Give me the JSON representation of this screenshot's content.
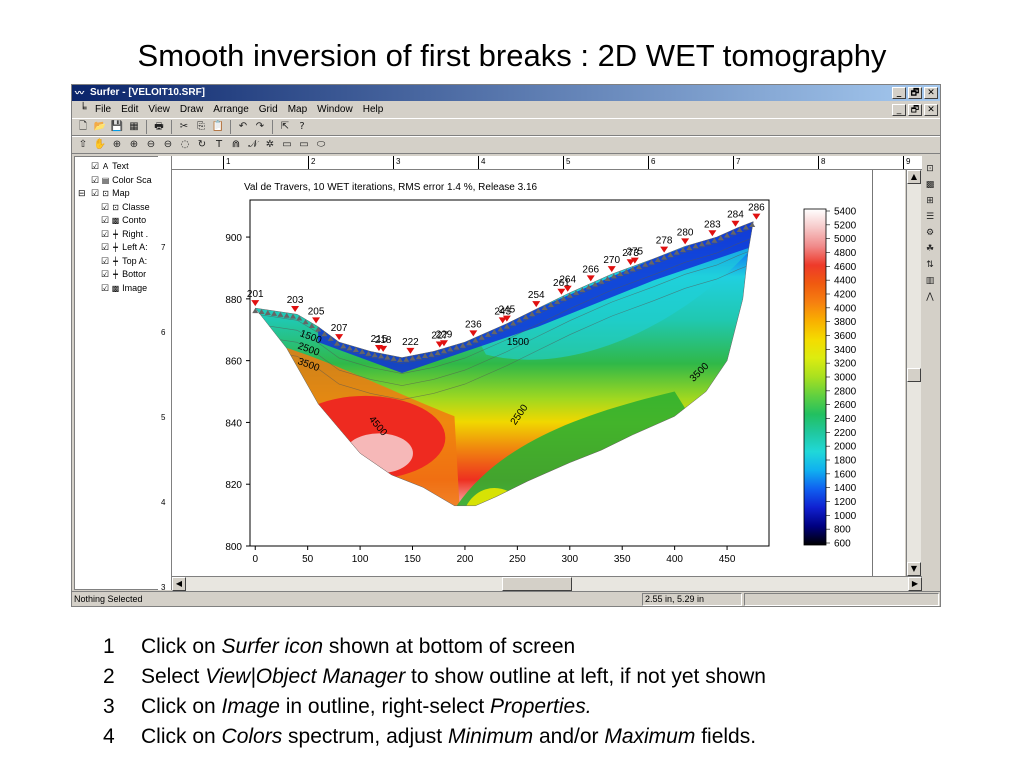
{
  "slide": {
    "title": "Smooth inversion of first breaks : 2D WET tomography"
  },
  "window": {
    "title": "Surfer - [VELOIT10.SRF]",
    "controls": [
      "_",
      "🗗",
      "✕"
    ],
    "mdi_controls": [
      "_",
      "🗗",
      "✕"
    ]
  },
  "menu": [
    "File",
    "Edit",
    "View",
    "Draw",
    "Arrange",
    "Grid",
    "Map",
    "Window",
    "Help"
  ],
  "toolbar1_icons": [
    "new-icon",
    "open-icon",
    "save-icon",
    "grid-icon",
    "print-icon",
    "cut-icon",
    "copy-icon",
    "paste-icon",
    "undo-icon",
    "redo-icon",
    "select-icon",
    "help-icon"
  ],
  "toolbar1_glyphs": [
    "🗋",
    "📂",
    "💾",
    "▦",
    "🖶",
    "✂",
    "⎘",
    "📋",
    "↶",
    "↷",
    "⇱",
    "?"
  ],
  "toolbar2_glyphs": [
    "⇧",
    "✋",
    "⊕",
    "⊕",
    "⊖",
    "⊖",
    "◌",
    "↻",
    "T",
    "⋒",
    "𝒩",
    "✲",
    "▭",
    "▭",
    "⬭"
  ],
  "right_tools": [
    "⊡",
    "▩",
    "⊞",
    "☰",
    "⚙",
    "☘",
    "⇅",
    "▥",
    "⋀"
  ],
  "outline": {
    "items": [
      {
        "label": "Text",
        "icon": "A",
        "check": "☑",
        "level": 1
      },
      {
        "label": "Color Sca",
        "icon": "▤",
        "check": "☑",
        "level": 1
      },
      {
        "label": "Map",
        "icon": "⊡",
        "check": "☑",
        "level": 1,
        "expander": "⊟"
      },
      {
        "label": "Classe",
        "icon": "⊡",
        "check": "☑",
        "level": 2
      },
      {
        "label": "Conto",
        "icon": "▩",
        "check": "☑",
        "level": 2
      },
      {
        "label": "Right .",
        "icon": "┿",
        "check": "☑",
        "level": 2
      },
      {
        "label": "Left A:",
        "icon": "┿",
        "check": "☑",
        "level": 2
      },
      {
        "label": "Top A:",
        "icon": "┿",
        "check": "☑",
        "level": 2
      },
      {
        "label": "Bottor",
        "icon": "┿",
        "check": "☑",
        "level": 2
      },
      {
        "label": "Image",
        "icon": "▩",
        "check": "☑",
        "level": 2
      }
    ]
  },
  "rulers": {
    "top": [
      "1",
      "2",
      "3",
      "4",
      "5",
      "6",
      "7",
      "8",
      "9"
    ],
    "left": [
      "7",
      "6",
      "5",
      "4",
      "3"
    ]
  },
  "status": {
    "left": "Nothing Selected",
    "coords": "2.55 in, 5.29 in"
  },
  "instructions": [
    {
      "num": "1",
      "parts": [
        {
          "t": "Click on "
        },
        {
          "t": "Surfer icon",
          "em": true
        },
        {
          "t": " shown at bottom of screen"
        }
      ]
    },
    {
      "num": "2",
      "parts": [
        {
          "t": "Select "
        },
        {
          "t": "View|Object Manager",
          "em": true
        },
        {
          "t": " to show outline at left, if not yet shown"
        }
      ]
    },
    {
      "num": "3",
      "parts": [
        {
          "t": "Click on "
        },
        {
          "t": "Image",
          "em": true
        },
        {
          "t": " in outline, right-select "
        },
        {
          "t": "Properties.",
          "em": true
        }
      ]
    },
    {
      "num": "4",
      "parts": [
        {
          "t": "Click on "
        },
        {
          "t": "Colors",
          "em": true
        },
        {
          "t": " spectrum, adjust "
        },
        {
          "t": "Minimum",
          "em": true
        },
        {
          "t": " and/or "
        },
        {
          "t": "Maximum",
          "em": true
        },
        {
          "t": " fields."
        }
      ]
    }
  ],
  "plot": {
    "title": "Val de Travers,   10 WET iterations,   RMS error 1.4 %,   Release 3.16",
    "xticks": [
      0,
      50,
      100,
      150,
      200,
      250,
      300,
      350,
      400,
      450
    ],
    "yticks": [
      800,
      820,
      840,
      860,
      880,
      900
    ],
    "xlim": [
      -5,
      490
    ],
    "ylim": [
      800,
      912
    ],
    "surface": [
      [
        0,
        877
      ],
      [
        40,
        875
      ],
      [
        60,
        871
      ],
      [
        80,
        866
      ],
      [
        110,
        863
      ],
      [
        140,
        861
      ],
      [
        170,
        863
      ],
      [
        200,
        866
      ],
      [
        240,
        872
      ],
      [
        270,
        877
      ],
      [
        300,
        882
      ],
      [
        340,
        888
      ],
      [
        380,
        893
      ],
      [
        410,
        897
      ],
      [
        440,
        900
      ],
      [
        460,
        903
      ],
      [
        475,
        905
      ]
    ],
    "bottom": [
      [
        0,
        877
      ],
      [
        30,
        864
      ],
      [
        60,
        846
      ],
      [
        80,
        838
      ],
      [
        100,
        830
      ],
      [
        130,
        823
      ],
      [
        160,
        819
      ],
      [
        190,
        813
      ],
      [
        210,
        813
      ],
      [
        230,
        816
      ],
      [
        260,
        821
      ],
      [
        300,
        827
      ],
      [
        330,
        831
      ],
      [
        360,
        836
      ],
      [
        400,
        842
      ],
      [
        430,
        850
      ],
      [
        450,
        860
      ],
      [
        465,
        880
      ],
      [
        470,
        895
      ],
      [
        475,
        905
      ]
    ],
    "stations": [
      {
        "x": 0,
        "label": "201"
      },
      {
        "x": 38,
        "label": "203"
      },
      {
        "x": 58,
        "label": "205"
      },
      {
        "x": 80,
        "label": "207"
      },
      {
        "x": 118,
        "label": "215"
      },
      {
        "x": 122,
        "label": "218"
      },
      {
        "x": 148,
        "label": "222"
      },
      {
        "x": 176,
        "label": "227"
      },
      {
        "x": 180,
        "label": "229"
      },
      {
        "x": 208,
        "label": "236"
      },
      {
        "x": 236,
        "label": "243"
      },
      {
        "x": 240,
        "label": "245"
      },
      {
        "x": 268,
        "label": "254"
      },
      {
        "x": 292,
        "label": "261"
      },
      {
        "x": 298,
        "label": "264"
      },
      {
        "x": 320,
        "label": "266"
      },
      {
        "x": 340,
        "label": "270"
      },
      {
        "x": 358,
        "label": "273"
      },
      {
        "x": 362,
        "label": "275"
      },
      {
        "x": 390,
        "label": "278"
      },
      {
        "x": 410,
        "label": "280"
      },
      {
        "x": 436,
        "label": "283"
      },
      {
        "x": 458,
        "label": "284"
      },
      {
        "x": 478,
        "label": "286"
      }
    ],
    "contour_labels": [
      {
        "x": 42,
        "y": 868,
        "text": "1500",
        "rot": 20
      },
      {
        "x": 40,
        "y": 864,
        "text": "2500",
        "rot": 20
      },
      {
        "x": 40,
        "y": 859,
        "text": "3500",
        "rot": 20
      },
      {
        "x": 240,
        "y": 865,
        "text": "1500",
        "rot": 0
      },
      {
        "x": 108,
        "y": 841,
        "text": "4500",
        "rot": 50
      },
      {
        "x": 248,
        "y": 839,
        "text": "2500",
        "rot": -55
      },
      {
        "x": 418,
        "y": 853,
        "text": "3500",
        "rot": -45
      }
    ]
  },
  "colorbar": {
    "labels": [
      "5400",
      "5200",
      "5000",
      "4800",
      "4600",
      "4400",
      "4200",
      "4000",
      "3800",
      "3600",
      "3400",
      "3200",
      "3000",
      "2800",
      "2600",
      "2400",
      "2200",
      "2000",
      "1800",
      "1600",
      "1400",
      "1200",
      "1000",
      "800",
      "600"
    ],
    "stops": [
      "#ffffff",
      "#f6c8c8",
      "#f08a8a",
      "#ee3a2a",
      "#f05a10",
      "#f68010",
      "#f9b000",
      "#f4dc00",
      "#dcec10",
      "#a8e020",
      "#60d040",
      "#22c060",
      "#20c8a0",
      "#20d8d8",
      "#10b0f0",
      "#1060f0",
      "#1020d0",
      "#000080",
      "#000000"
    ]
  },
  "colors": {
    "shallow": "#1030d8",
    "mid": "#20c8c0",
    "green": "#30b830",
    "red": "#ee2a20",
    "station_marker": "#e01010"
  }
}
